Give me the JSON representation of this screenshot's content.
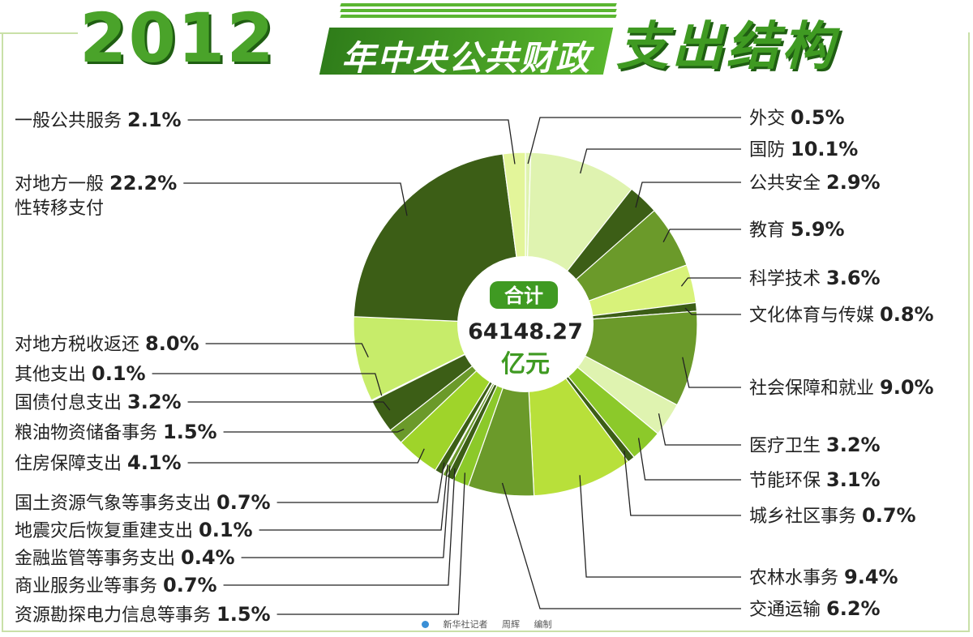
{
  "title": {
    "year": "2012",
    "middle": "年中央公共财政",
    "end": "支出结构"
  },
  "credit": [
    "新华社记者",
    "周辉",
    "编制"
  ],
  "colors": {
    "dark_green": "#3c5e16",
    "mid_green": "#6b9a2a",
    "lime": "#9fd42a",
    "pale_green": "#dff3b0",
    "frame": "#c9e0a8"
  },
  "chart_data": {
    "type": "pie",
    "variant": "donut",
    "center_label": {
      "badge": "合计",
      "total": "64148.27",
      "unit": "亿元"
    },
    "slices": [
      {
        "label": "外交",
        "value": 0.5,
        "display": "0.5%",
        "color": "#dff3b0",
        "side": "right"
      },
      {
        "label": "国防",
        "value": 10.1,
        "display": "10.1%",
        "color": "#dff3b0",
        "side": "right"
      },
      {
        "label": "公共安全",
        "value": 2.9,
        "display": "2.9%",
        "color": "#3c5e16",
        "side": "right"
      },
      {
        "label": "教育",
        "value": 5.9,
        "display": "5.9%",
        "color": "#6b9a2a",
        "side": "right"
      },
      {
        "label": "科学技术",
        "value": 3.6,
        "display": "3.6%",
        "color": "#d8f27a",
        "side": "right"
      },
      {
        "label": "文化体育与传媒",
        "value": 0.8,
        "display": "0.8%",
        "color": "#3c5e16",
        "side": "right"
      },
      {
        "label": "社会保障和就业",
        "value": 9.0,
        "display": "9.0%",
        "color": "#6b9a2a",
        "side": "right"
      },
      {
        "label": "医疗卫生",
        "value": 3.2,
        "display": "3.2%",
        "color": "#dff3b0",
        "side": "right"
      },
      {
        "label": "节能环保",
        "value": 3.1,
        "display": "3.1%",
        "color": "#8cc92a",
        "side": "right"
      },
      {
        "label": "城乡社区事务",
        "value": 0.7,
        "display": "0.7%",
        "color": "#3c5e16",
        "side": "right"
      },
      {
        "label": "农林水事务",
        "value": 9.4,
        "display": "9.4%",
        "color": "#b8e03a",
        "side": "right"
      },
      {
        "label": "交通运输",
        "value": 6.2,
        "display": "6.2%",
        "color": "#6b9a2a",
        "side": "right"
      },
      {
        "label": "资源勘探电力信息等事务",
        "value": 1.5,
        "display": "1.5%",
        "color": "#8cc92a",
        "side": "left"
      },
      {
        "label": "商业服务业等事务",
        "value": 0.7,
        "display": "0.7%",
        "color": "#3c5e16",
        "side": "left"
      },
      {
        "label": "金融监管等事务支出",
        "value": 0.4,
        "display": "0.4%",
        "color": "#6b9a2a",
        "side": "left"
      },
      {
        "label": "地震灾后恢复重建支出",
        "value": 0.1,
        "display": "0.1%",
        "color": "#d8f27a",
        "side": "left"
      },
      {
        "label": "国土资源气象等事务支出",
        "value": 0.7,
        "display": "0.7%",
        "color": "#3c5e16",
        "side": "left"
      },
      {
        "label": "住房保障支出",
        "value": 4.1,
        "display": "4.1%",
        "color": "#9fd42a",
        "side": "left"
      },
      {
        "label": "粮油物资储备事务",
        "value": 1.5,
        "display": "1.5%",
        "color": "#6b9a2a",
        "side": "left"
      },
      {
        "label": "国债付息支出",
        "value": 3.2,
        "display": "3.2%",
        "color": "#3c5e16",
        "side": "left"
      },
      {
        "label": "其他支出",
        "value": 0.1,
        "display": "0.1%",
        "color": "#dff3b0",
        "side": "left"
      },
      {
        "label": "对地方税收返还",
        "value": 8.0,
        "display": "8.0%",
        "color": "#c7ec6a",
        "side": "left"
      },
      {
        "label": "对地方一般性转移支付",
        "value": 22.2,
        "display": "22.2%",
        "color": "#3c5e16",
        "side": "left",
        "label_lines": [
          "对地方一般",
          "性转移支付"
        ]
      },
      {
        "label": "一般公共服务",
        "value": 2.1,
        "display": "2.1%",
        "color": "#e3f59a",
        "side": "left"
      }
    ]
  }
}
